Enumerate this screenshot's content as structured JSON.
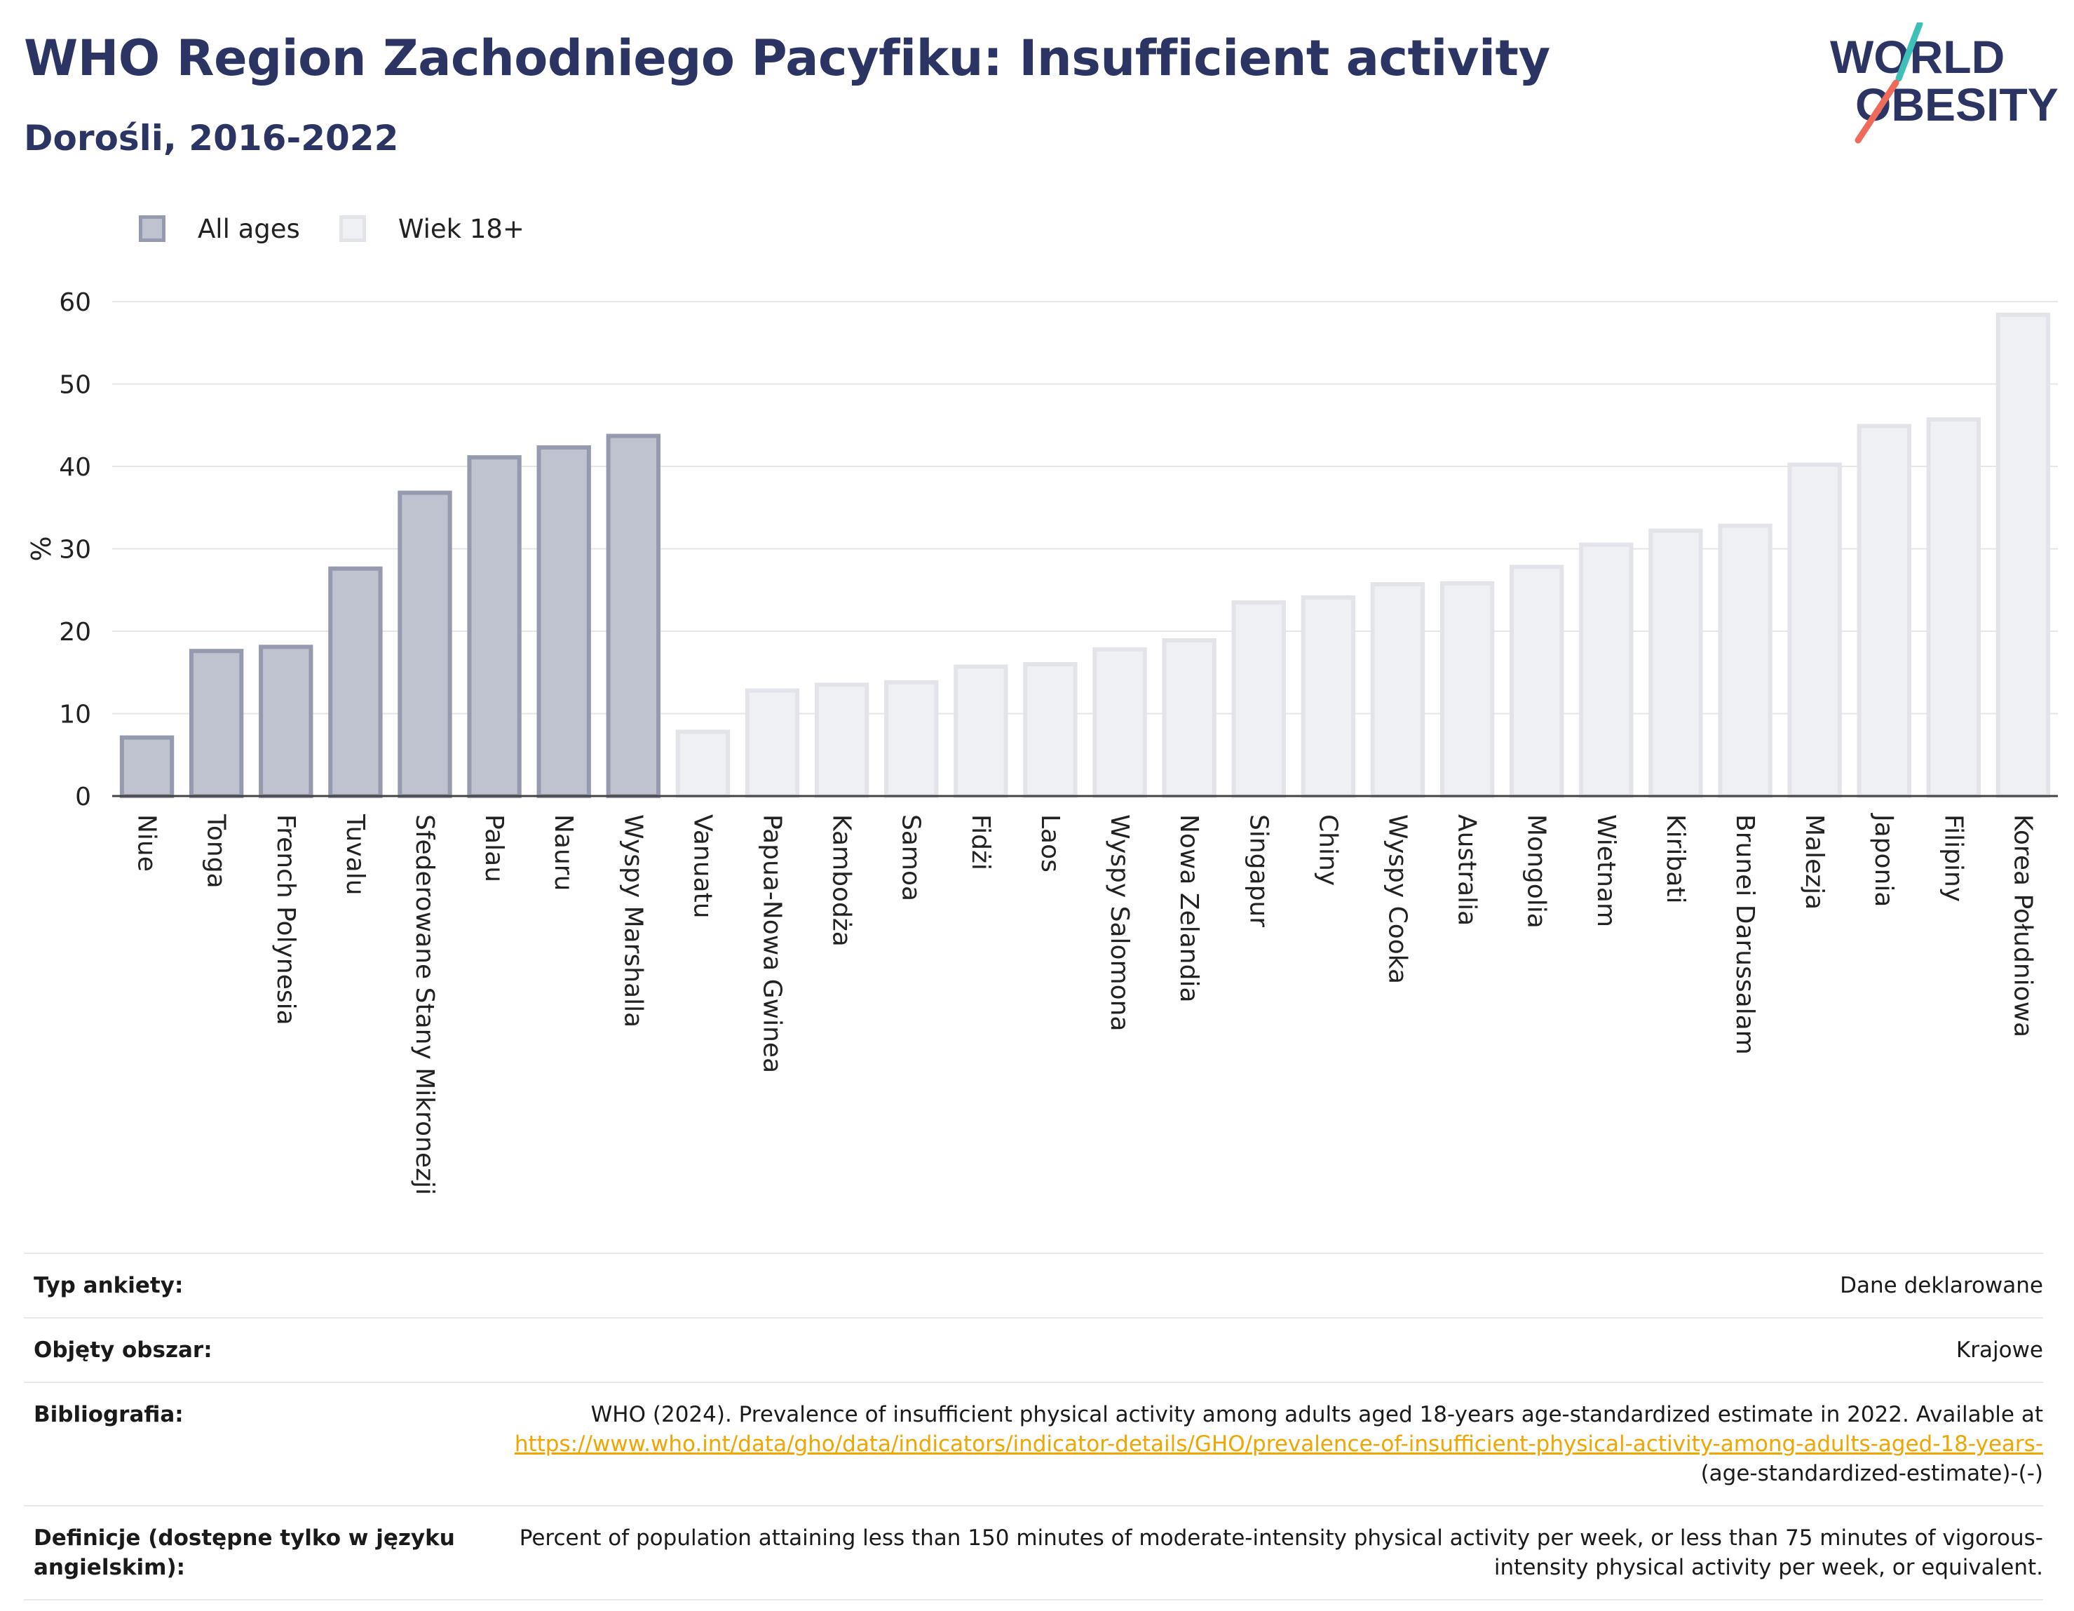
{
  "title": "WHO Region Zachodniego Pacyfiku: Insufficient activity",
  "subtitle": "Dorośli, 2016-2022",
  "logo": {
    "line1": "WORLD",
    "line2": "OBESITY"
  },
  "colors": {
    "title": "#2b3463",
    "all_ages_fill": "#bfc2cf",
    "all_ages_stroke": "#959aaf",
    "adult_fill": "#eff0f4",
    "adult_stroke": "#e3e4ea",
    "grid": "#e6e6e6",
    "link": "#f0a500",
    "logo_teal": "#3ebfb8",
    "logo_red": "#ee6b5b"
  },
  "legend": [
    {
      "label": "All ages",
      "series": "All ages"
    },
    {
      "label": "Wiek 18+",
      "series": "Wiek 18+"
    }
  ],
  "chart_data": {
    "type": "bar",
    "ylabel": "%",
    "ylim": [
      0,
      60
    ],
    "yticks": [
      0,
      10,
      20,
      30,
      40,
      50,
      60
    ],
    "grid": true,
    "legend_position": "top-left",
    "categories": [
      "Niue",
      "Tonga",
      "French Polynesia",
      "Tuvalu",
      "Sfederowane Stany Mikronezji",
      "Palau",
      "Nauru",
      "Wyspy Marshalla",
      "Vanuatu",
      "Papua-Nowa Gwinea",
      "Kambodża",
      "Samoa",
      "Fidżi",
      "Laos",
      "Wyspy Salomona",
      "Nowa Zelandia",
      "Singapur",
      "Chiny",
      "Wyspy Cooka",
      "Australia",
      "Mongolia",
      "Wietnam",
      "Kiribati",
      "Brunei Darussalam",
      "Malezja",
      "Japonia",
      "Filipiny",
      "Korea Południowa"
    ],
    "values": [
      7.1,
      17.6,
      18.1,
      27.6,
      36.8,
      41.1,
      42.3,
      43.7,
      7.8,
      12.8,
      13.5,
      13.8,
      15.7,
      16.0,
      17.8,
      18.9,
      23.5,
      24.1,
      25.7,
      25.8,
      27.8,
      30.5,
      32.2,
      32.8,
      40.2,
      44.9,
      45.7,
      58.4
    ],
    "series_of_category": [
      "All ages",
      "All ages",
      "All ages",
      "All ages",
      "All ages",
      "All ages",
      "All ages",
      "All ages",
      "Wiek 18+",
      "Wiek 18+",
      "Wiek 18+",
      "Wiek 18+",
      "Wiek 18+",
      "Wiek 18+",
      "Wiek 18+",
      "Wiek 18+",
      "Wiek 18+",
      "Wiek 18+",
      "Wiek 18+",
      "Wiek 18+",
      "Wiek 18+",
      "Wiek 18+",
      "Wiek 18+",
      "Wiek 18+",
      "Wiek 18+",
      "Wiek 18+",
      "Wiek 18+",
      "Wiek 18+"
    ]
  },
  "info_table": {
    "survey_type": {
      "label": "Typ ankiety:",
      "value": "Dane deklarowane"
    },
    "coverage": {
      "label": "Objęty obszar:",
      "value": "Krajowe"
    },
    "bibliography": {
      "label": "Bibliografia:",
      "text": "WHO (2024). Prevalence of insufficient physical activity among adults aged 18-years age-standardized estimate in 2022. Available at",
      "link": "https://www.who.int/data/gho/data/indicators/indicator-details/GHO/prevalence-of-insufficient-physical-activity-among-adults-aged-18-years-",
      "suffix": "(age-standardized-estimate)-(-)"
    },
    "definitions": {
      "label": "Definicje (dostępne tylko w języku angielskim):",
      "value": "Percent of population attaining less than 150 minutes of moderate-intensity physical activity per week, or less than 75 minutes of vigorous-intensity physical activity per week, or equivalent."
    }
  }
}
